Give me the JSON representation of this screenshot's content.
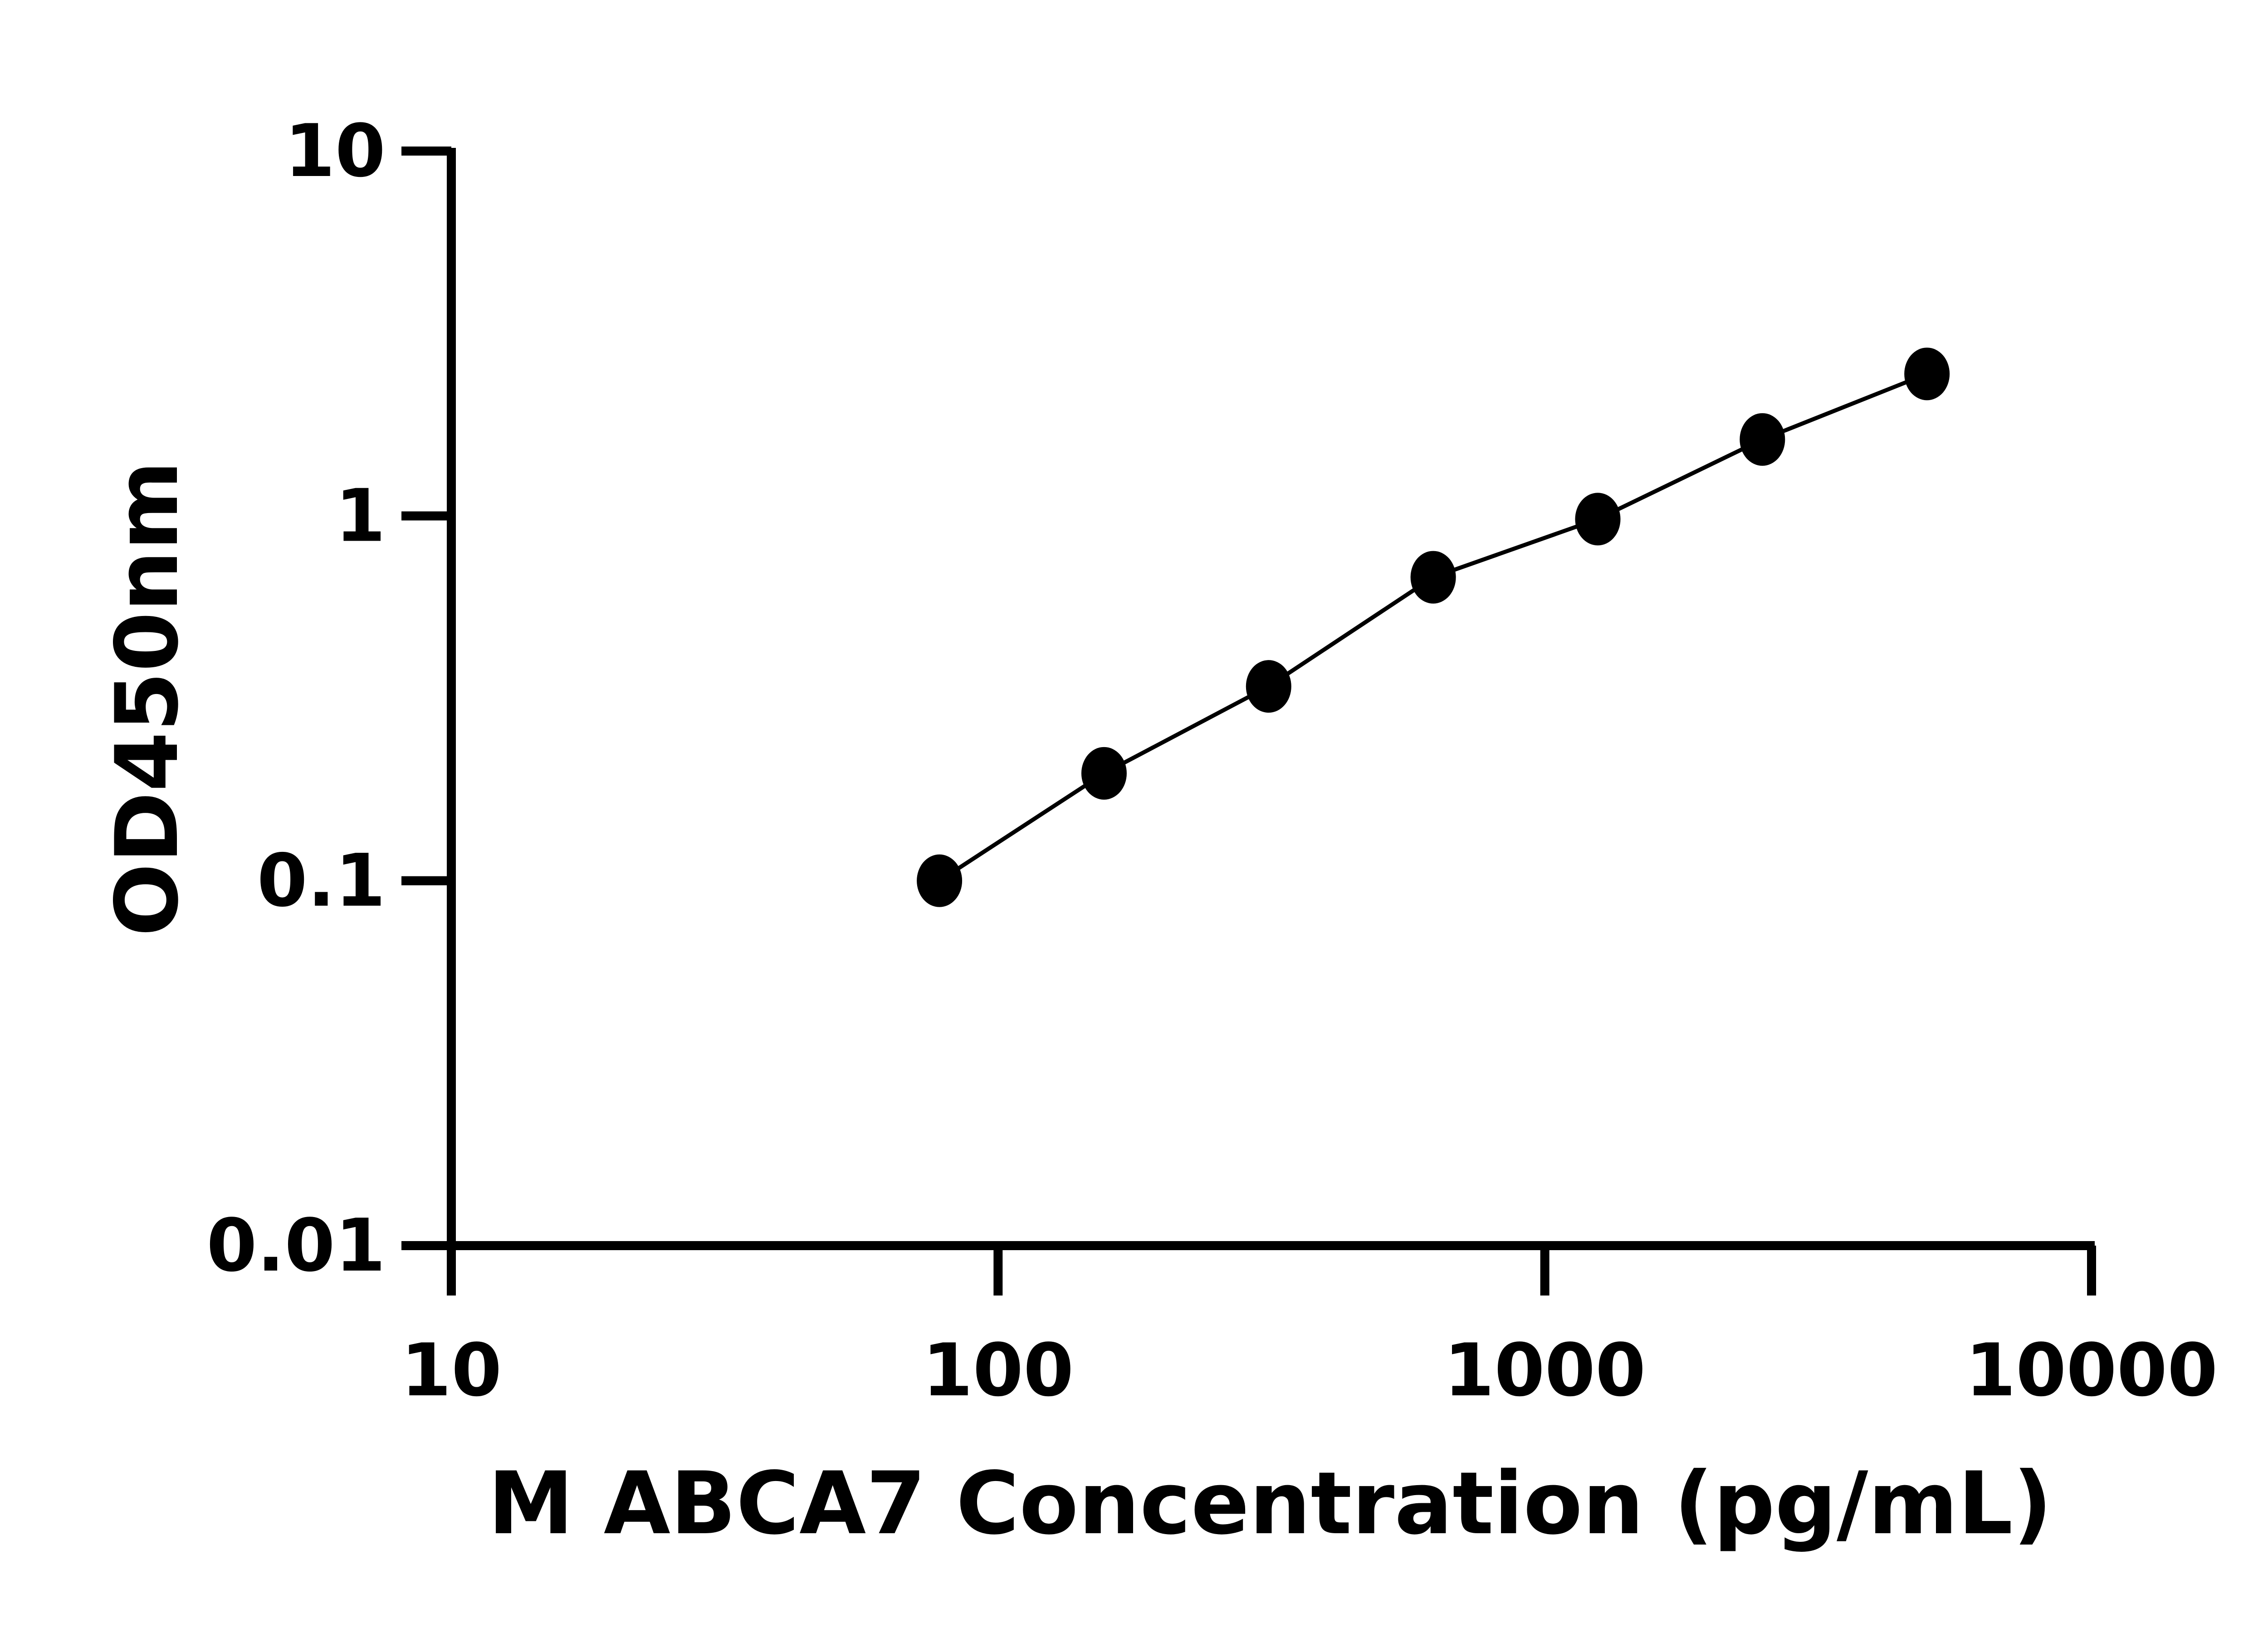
{
  "chart_data": {
    "type": "scatter",
    "title": "",
    "xlabel": "M ABCA7 Concentration (pg/mL)",
    "ylabel": "OD450nm",
    "xscale": "log",
    "yscale": "log",
    "xlim": [
      10,
      10000
    ],
    "ylim": [
      0.01,
      10
    ],
    "xticks": [
      "10",
      "100",
      "1000",
      "10000"
    ],
    "yticks": [
      "0.01",
      "0.1",
      "1",
      "10"
    ],
    "grid": false,
    "fit_line": true,
    "marker_color": "#000000",
    "points": [
      {
        "x": 78.125,
        "y": 0.1
      },
      {
        "x": 156.25,
        "y": 0.197
      },
      {
        "x": 312.5,
        "y": 0.341
      },
      {
        "x": 625,
        "y": 0.679
      },
      {
        "x": 1250,
        "y": 0.98
      },
      {
        "x": 2500,
        "y": 1.62
      },
      {
        "x": 5000,
        "y": 2.45
      }
    ]
  }
}
